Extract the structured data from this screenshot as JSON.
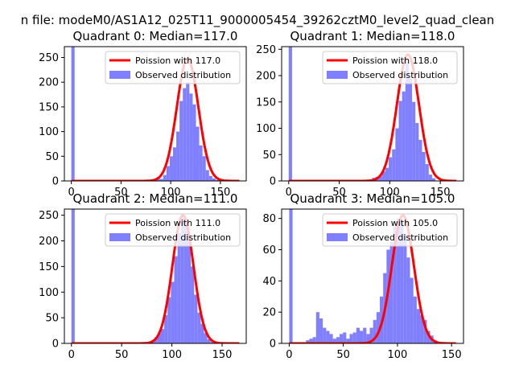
{
  "figure": {
    "suptitle": "n file: modeM0/AS1A12_025T11_9000005454_39262cztM0_level2_quad_clean"
  },
  "colors": {
    "bars": "#8080ff",
    "fit_line": "#ff0000",
    "legend_edge": "#cccccc"
  },
  "chart_data": [
    {
      "type": "bar",
      "title": "Quadrant 0: Median=117.0",
      "xlim": [
        -7,
        176
      ],
      "ylim": [
        0,
        272
      ],
      "xticks": [
        0,
        50,
        100,
        150
      ],
      "yticks": [
        0,
        50,
        100,
        150,
        200,
        250
      ],
      "bin_width": 3.3,
      "legend": [
        "Poission with 117.0",
        "Observed distribution"
      ],
      "legend_position": "top-right",
      "bins_x": [
        0.0,
        79.2,
        85.8,
        89.1,
        92.4,
        95.7,
        99.0,
        102.3,
        105.6,
        108.9,
        112.2,
        115.5,
        118.8,
        122.1,
        125.4,
        128.7,
        132.0,
        135.3,
        138.6,
        141.9,
        145.2
      ],
      "bins_y": [
        272,
        2,
        8,
        4,
        12,
        30,
        50,
        68,
        100,
        162,
        188,
        200,
        177,
        155,
        110,
        72,
        50,
        22,
        10,
        5,
        2
      ],
      "fit": {
        "mean": 117.0,
        "amplitude": 248,
        "sigma": 10.8
      }
    },
    {
      "type": "bar",
      "title": "Quadrant 1: Median=118.0",
      "xlim": [
        -7,
        173
      ],
      "ylim": [
        0,
        255
      ],
      "xticks": [
        0,
        50,
        100,
        150
      ],
      "yticks": [
        0,
        50,
        100,
        150,
        200,
        250
      ],
      "bin_width": 3.3,
      "legend": [
        "Poission with 118.0",
        "Observed distribution"
      ],
      "legend_position": "top-right",
      "bins_x": [
        0.0,
        66.0,
        79.2,
        82.5,
        85.8,
        89.1,
        92.4,
        95.7,
        99.0,
        102.3,
        105.6,
        108.9,
        112.2,
        115.5,
        118.8,
        122.1,
        125.4,
        128.7,
        132.0,
        135.3,
        138.6,
        141.9
      ],
      "bins_y": [
        255,
        2,
        2,
        6,
        8,
        10,
        18,
        25,
        45,
        60,
        100,
        152,
        170,
        225,
        195,
        150,
        110,
        78,
        55,
        32,
        12,
        5
      ],
      "fit": {
        "mean": 118.0,
        "amplitude": 240,
        "sigma": 10.9
      }
    },
    {
      "type": "bar",
      "title": "Quadrant 2: Median=111.0",
      "xlim": [
        -7,
        174
      ],
      "ylim": [
        0,
        262
      ],
      "xticks": [
        0,
        50,
        100,
        150
      ],
      "yticks": [
        0,
        50,
        100,
        150,
        200,
        250
      ],
      "bin_width": 3.3,
      "legend": [
        "Poission with 111.0",
        "Observed distribution"
      ],
      "legend_position": "top-right",
      "bins_x": [
        0.0,
        72.6,
        75.9,
        79.2,
        82.5,
        85.8,
        89.1,
        92.4,
        95.7,
        99.0,
        102.3,
        105.6,
        108.9,
        112.2,
        115.5,
        118.8,
        122.1,
        125.4,
        128.7,
        132.0,
        135.3,
        138.6
      ],
      "bins_y": [
        262,
        2,
        3,
        5,
        12,
        20,
        28,
        55,
        90,
        120,
        170,
        215,
        245,
        238,
        205,
        150,
        95,
        60,
        38,
        20,
        8,
        3
      ],
      "fit": {
        "mean": 111.0,
        "amplitude": 250,
        "sigma": 10.5
      }
    },
    {
      "type": "bar",
      "title": "Quadrant 3: Median=105.0",
      "xlim": [
        -7,
        161
      ],
      "ylim": [
        0,
        86
      ],
      "xticks": [
        0,
        50,
        100,
        150
      ],
      "yticks": [
        0,
        20,
        40,
        60,
        80
      ],
      "bin_width": 3.1,
      "legend": [
        "Poission with 105.0",
        "Observed distribution"
      ],
      "legend_position": "top-right",
      "bins_x": [
        0.0,
        15.5,
        18.6,
        21.7,
        24.8,
        27.9,
        31.0,
        34.1,
        37.2,
        40.3,
        43.4,
        46.5,
        49.6,
        52.7,
        55.8,
        58.9,
        62.0,
        65.1,
        68.2,
        71.3,
        74.4,
        77.5,
        80.6,
        83.7,
        86.8,
        89.9,
        93.0,
        96.1,
        99.2,
        102.3,
        105.4,
        108.5,
        111.6,
        114.7,
        117.8,
        120.9,
        124.0,
        127.1,
        130.2,
        133.3
      ],
      "bins_y": [
        86,
        2,
        3,
        4,
        20,
        16,
        10,
        8,
        6,
        3,
        4,
        6,
        7,
        3,
        6,
        7,
        10,
        8,
        10,
        6,
        10,
        15,
        20,
        30,
        45,
        60,
        65,
        75,
        80,
        78,
        70,
        55,
        42,
        30,
        22,
        18,
        15,
        8,
        5,
        2
      ],
      "fit": {
        "mean": 105.0,
        "amplitude": 82,
        "sigma": 10.2
      }
    }
  ]
}
